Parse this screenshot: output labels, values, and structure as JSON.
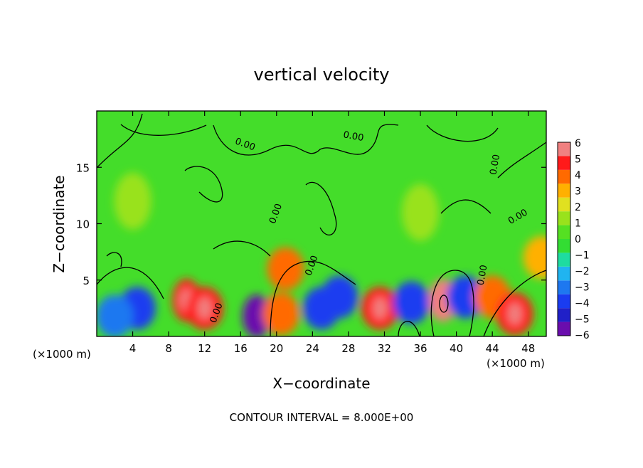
{
  "chart_data": {
    "type": "heatmap",
    "title": "vertical velocity",
    "xlabel": "X−coordinate",
    "ylabel": "Z−coordinate",
    "x_unit_left": "(×1000 m)",
    "x_unit_right": "(×1000 m)",
    "footer": "CONTOUR INTERVAL = 8.000E+00",
    "xlim": [
      0,
      50
    ],
    "ylim": [
      0,
      20
    ],
    "x_ticks": [
      4,
      8,
      12,
      16,
      20,
      24,
      28,
      32,
      36,
      40,
      44,
      48
    ],
    "y_ticks": [
      5,
      10,
      15
    ],
    "colorbar": {
      "min": -6,
      "max": 6,
      "labels": [
        6,
        5,
        4,
        3,
        2,
        1,
        0,
        "−1",
        "−2",
        "−3",
        "−4",
        "−5",
        "−6"
      ],
      "colors": [
        "#6a0dad",
        "#2020c8",
        "#1a3cf0",
        "#1e78f0",
        "#20b4f0",
        "#1edca0",
        "#33dd33",
        "#55e022",
        "#99e21c",
        "#e0e020",
        "#ffb000",
        "#ff6a00",
        "#ff1a1a",
        "#f08080"
      ]
    },
    "contour_labels": [
      "0.00",
      "0.00",
      "0.00",
      "0.00",
      "0.00",
      "0.00",
      "0.00",
      "0.00"
    ],
    "features": [
      {
        "x": 4.5,
        "z": 2.5,
        "value": -3.5
      },
      {
        "x": 2.0,
        "z": 1.8,
        "value": -3.0
      },
      {
        "x": 10.0,
        "z": 3.2,
        "value": 5.0
      },
      {
        "x": 12.0,
        "z": 2.5,
        "value": 4.5
      },
      {
        "x": 17.8,
        "z": 1.8,
        "value": -5.5
      },
      {
        "x": 20.5,
        "z": 2.0,
        "value": 4.0
      },
      {
        "x": 21.0,
        "z": 6.0,
        "value": 4.0
      },
      {
        "x": 25.0,
        "z": 2.5,
        "value": -4.0
      },
      {
        "x": 27.0,
        "z": 3.5,
        "value": -3.5
      },
      {
        "x": 31.5,
        "z": 2.5,
        "value": 4.5
      },
      {
        "x": 35.0,
        "z": 3.0,
        "value": -4.0
      },
      {
        "x": 38.5,
        "z": 3.2,
        "value": 6.0
      },
      {
        "x": 41.0,
        "z": 3.5,
        "value": -4.0
      },
      {
        "x": 44.0,
        "z": 3.5,
        "value": 3.5
      },
      {
        "x": 46.5,
        "z": 2.0,
        "value": 4.5
      },
      {
        "x": 49.5,
        "z": 7.0,
        "value": 3.0
      },
      {
        "x": 4.0,
        "z": 12.0,
        "value": 1.0
      },
      {
        "x": 36.0,
        "z": 11.0,
        "value": 1.5
      }
    ]
  }
}
